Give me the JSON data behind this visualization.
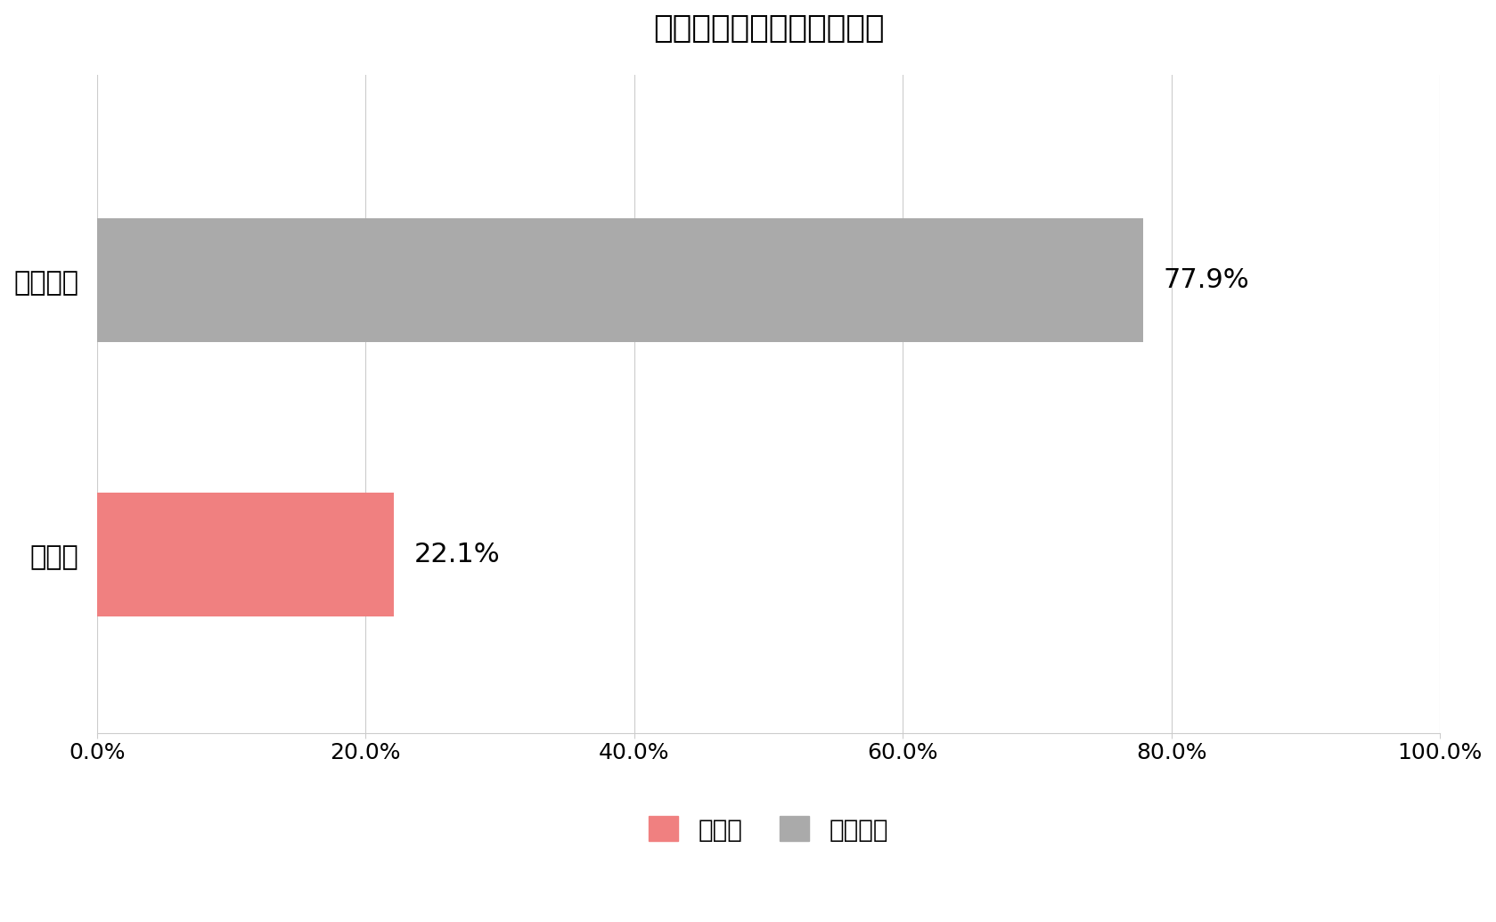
{
  "title": "食べたことのある豆苗料理",
  "categories": [
    "炒めもの",
    "サラダ"
  ],
  "values": [
    77.9,
    22.1
  ],
  "colors": [
    "#aaaaaa",
    "#f08080"
  ],
  "bar_labels": [
    "77.9%",
    "22.1%"
  ],
  "legend_labels": [
    "サラダ",
    "炒めもの"
  ],
  "legend_colors": [
    "#f08080",
    "#aaaaaa"
  ],
  "xlim": [
    0,
    100
  ],
  "xticks": [
    0,
    20,
    40,
    60,
    80,
    100
  ],
  "xtick_labels": [
    "0.0%",
    "20.0%",
    "40.0%",
    "60.0%",
    "80.0%",
    "100.0%"
  ],
  "background_color": "#ffffff",
  "title_fontsize": 26,
  "label_fontsize": 22,
  "tick_fontsize": 18,
  "legend_fontsize": 20,
  "bar_height": 0.45
}
